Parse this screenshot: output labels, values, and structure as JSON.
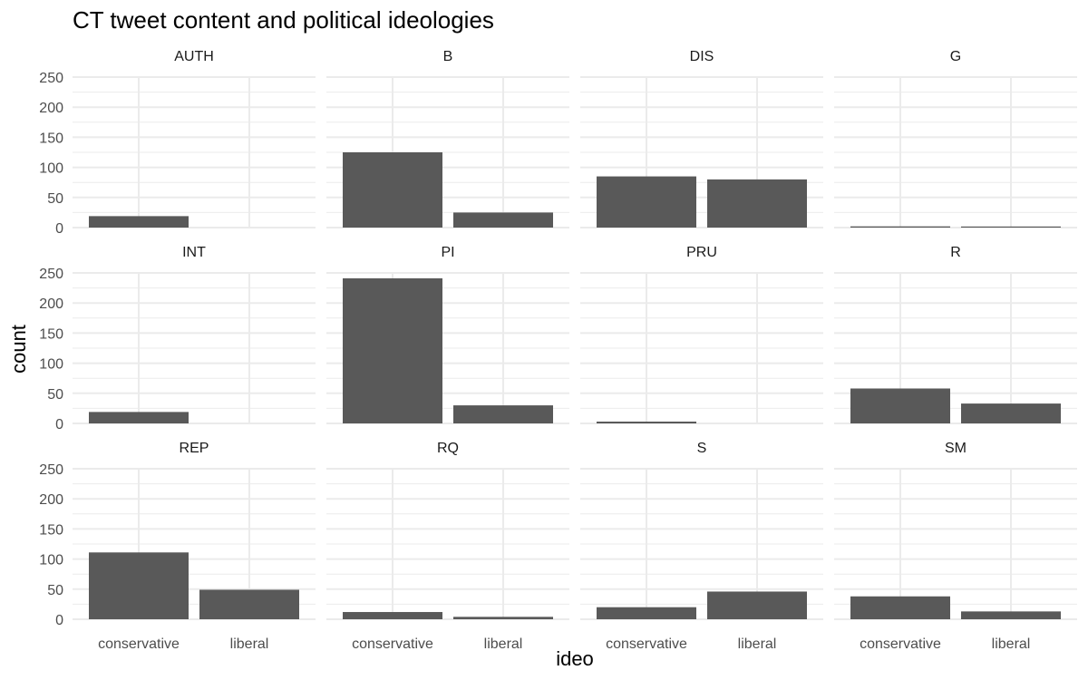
{
  "chart_data": {
    "type": "bar",
    "title": "CT tweet content and political ideologies",
    "xlabel": "ideo",
    "ylabel": "count",
    "categories": [
      "conservative",
      "liberal"
    ],
    "ylim": [
      0,
      250
    ],
    "yticks": [
      0,
      50,
      100,
      150,
      200,
      250
    ],
    "grid": true,
    "layout": "facet-grid 3x4",
    "bar_color": "#595959",
    "grid_color": "#ebebeb",
    "panels": [
      {
        "label": "AUTH",
        "values": [
          19,
          0
        ]
      },
      {
        "label": "B",
        "values": [
          125,
          25
        ]
      },
      {
        "label": "DIS",
        "values": [
          85,
          80
        ]
      },
      {
        "label": "G",
        "values": [
          2,
          1
        ]
      },
      {
        "label": "INT",
        "values": [
          19,
          0
        ]
      },
      {
        "label": "PI",
        "values": [
          241,
          30
        ]
      },
      {
        "label": "PRU",
        "values": [
          3,
          0
        ]
      },
      {
        "label": "R",
        "values": [
          58,
          33
        ]
      },
      {
        "label": "REP",
        "values": [
          111,
          49
        ]
      },
      {
        "label": "RQ",
        "values": [
          12,
          4
        ]
      },
      {
        "label": "S",
        "values": [
          20,
          46
        ]
      },
      {
        "label": "SM",
        "values": [
          38,
          13
        ]
      }
    ]
  }
}
